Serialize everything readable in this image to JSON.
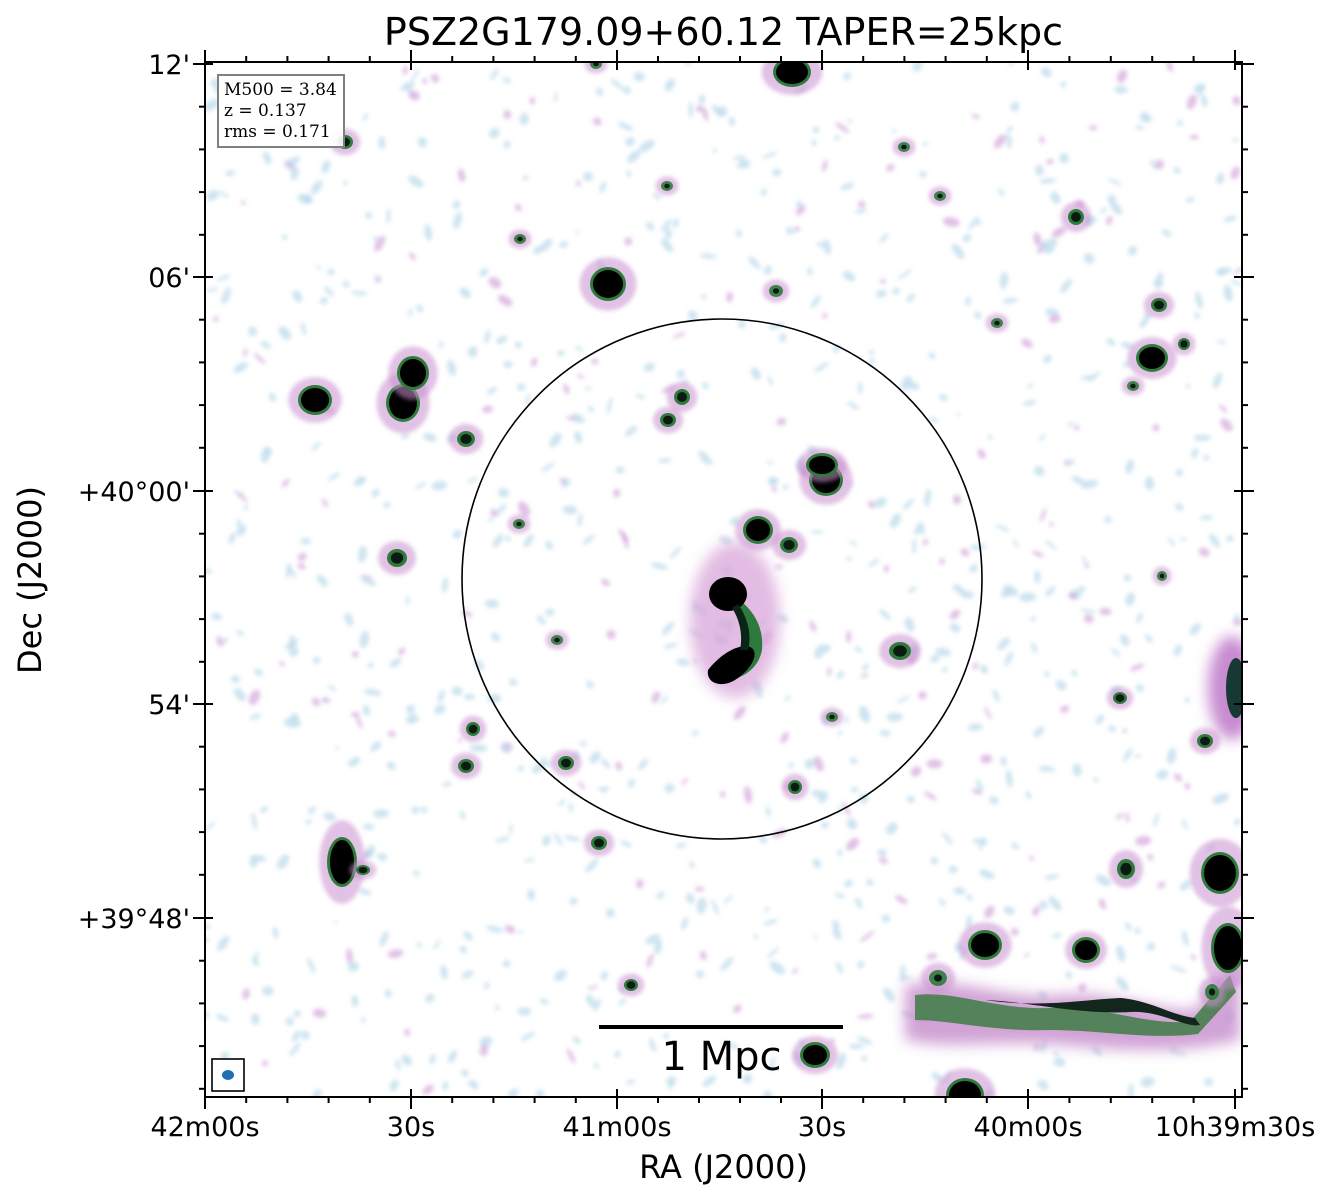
{
  "chart_data": {
    "type": "heatmap",
    "title": "PSZ2G179.09+60.12 TAPER=25kpc",
    "xlabel": "RA (J2000)",
    "ylabel": "Dec (J2000)",
    "x_ticks": [
      "42m00s",
      "30s",
      "41m00s",
      "30s",
      "40m00s",
      "10h39m30s"
    ],
    "y_ticks": [
      "12'",
      "06'",
      "+40°00'",
      "54'",
      "+39°48'"
    ],
    "info": {
      "m500": "M500 = 3.84",
      "z": "z = 0.137",
      "rms": "rms = 0.171"
    },
    "scalebar_label": "1 Mpc",
    "colors": {
      "faint": "#b9d8ea",
      "low": "#c98fcf",
      "mid": "#2f7b3c",
      "high": "#0c1a14",
      "beam": "#1f6fb5"
    }
  }
}
